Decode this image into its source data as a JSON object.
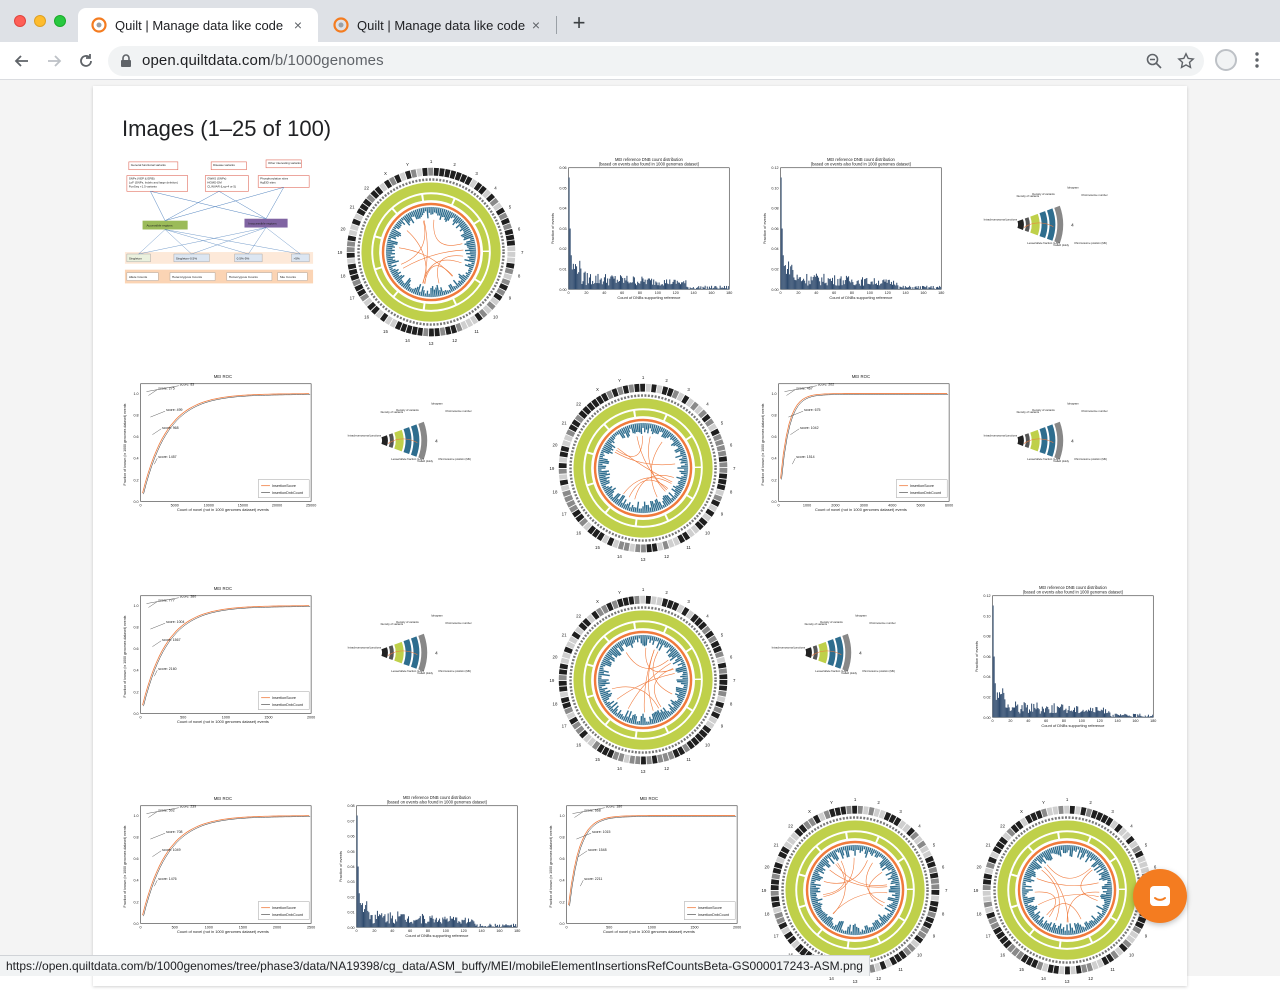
{
  "browser": {
    "tabs": [
      {
        "title": "Quilt | Manage data like code",
        "active": true
      },
      {
        "title": "Quilt | Manage data like code",
        "active": false
      }
    ],
    "new_tab_symbol": "+",
    "close_symbol": "×",
    "url_host": "open.quiltdata.com",
    "url_path": "/b/1000genomes",
    "icons": [
      "back-icon",
      "forward-icon",
      "reload-icon",
      "lock-icon",
      "zoom-icon",
      "star-icon",
      "profile-icon",
      "menu-icon"
    ]
  },
  "page": {
    "heading": "Images (1–25 of 100)",
    "status_url": "https://open.quiltdata.com/b/1000genomes/tree/phase3/data/NA19398/cg_data/ASM_buffy/MEI/mobileElementInsertionsRefCountsBeta-GS000017243-ASM.png",
    "thumbnails": [
      {
        "kind": "diagram"
      },
      {
        "kind": "circos"
      },
      {
        "kind": "histogram",
        "title": "MEI reference DNB count distribution",
        "subtitle": "(based on events also found in 1000 genomes dataset)",
        "ylabel": "Fraction of events",
        "xlabel": "Count of DNBs supporting reference",
        "yticks": [
          "0.00",
          "0.01",
          "0.02",
          "0.03",
          "0.04",
          "0.05",
          "0.06"
        ],
        "xticks": [
          "0",
          "20",
          "40",
          "60",
          "80",
          "100",
          "120",
          "140",
          "160",
          "180"
        ]
      },
      {
        "kind": "histogram",
        "title": "MEI reference DNB count distribution",
        "subtitle": "(based on events also found in 1000 genomes dataset)",
        "ylabel": "Fraction of events",
        "xlabel": "Count of DNBs supporting reference",
        "yticks": [
          "0.00",
          "0.02",
          "0.04",
          "0.06",
          "0.08",
          "0.10",
          "0.12"
        ],
        "xticks": [
          "0",
          "20",
          "40",
          "60",
          "80",
          "100",
          "120",
          "140",
          "160",
          "180"
        ]
      },
      {
        "kind": "legend"
      },
      {
        "kind": "roc",
        "title": "MEI ROC",
        "ylabel": "Fraction of known (in 1000 genomes dataset) events",
        "xlabel": "Count of novel (not in 1000 genomes dataset) events",
        "xticks": [
          "0",
          "5000",
          "10000",
          "15000",
          "20000",
          "25000"
        ],
        "scores": [
          "score: 83",
          "score: 275",
          "score: 499",
          "score: 968",
          "score: 1457"
        ],
        "legend": [
          "InsertionScore",
          "InsertionDnbCount"
        ]
      },
      {
        "kind": "legend"
      },
      {
        "kind": "circos"
      },
      {
        "kind": "roc",
        "title": "MEI ROC",
        "ylabel": "Fraction of known (in 1000 genomes dataset) events",
        "xlabel": "Count of novel (not in 1000 genomes dataset) events",
        "xticks": [
          "0",
          "1000",
          "2000",
          "3000",
          "4000",
          "5000",
          "6000"
        ],
        "scores": [
          "score: 202",
          "score: 467",
          "score: 675",
          "score: 1042",
          "score: 1514"
        ],
        "legend": [
          "InsertionScore",
          "InsertionDnbCount"
        ]
      },
      {
        "kind": "legend"
      },
      {
        "kind": "roc",
        "title": "MEI ROC",
        "ylabel": "Fraction of known (in 1000 genomes dataset) events",
        "xlabel": "Count of novel (not in 1000 genomes dataset) events",
        "xticks": [
          "0",
          "500",
          "1000",
          "1500",
          "2000"
        ],
        "scores": [
          "score: 380",
          "score: 777",
          "score: 1004",
          "score: 1567",
          "score: 2160"
        ],
        "legend": [
          "InsertionScore",
          "InsertionDnbCount"
        ]
      },
      {
        "kind": "legend"
      },
      {
        "kind": "circos"
      },
      {
        "kind": "legend"
      },
      {
        "kind": "histogram",
        "title": "MEI reference DNB count distribution",
        "subtitle": "(based on events also found in 1000 genomes dataset)",
        "ylabel": "Fraction of events",
        "xlabel": "Count of DNBs supporting reference",
        "yticks": [
          "0.00",
          "0.02",
          "0.04",
          "0.06",
          "0.08",
          "0.10",
          "0.12"
        ],
        "xticks": [
          "0",
          "20",
          "40",
          "60",
          "80",
          "100",
          "120",
          "140",
          "160",
          "180"
        ]
      },
      {
        "kind": "roc",
        "title": "MEI ROC",
        "ylabel": "Fraction of known (in 1000 genomes dataset) events",
        "xlabel": "Count of novel (not in 1000 genomes dataset) events",
        "xticks": [
          "0",
          "500",
          "1000",
          "1500",
          "2000",
          "2500"
        ],
        "scores": [
          "score: 239",
          "score: 502",
          "score: 708",
          "score: 1049",
          "score: 1476"
        ],
        "legend": [
          "InsertionScore",
          "InsertionDnbCount"
        ]
      },
      {
        "kind": "histogram",
        "title": "MEI reference DNB count distribution",
        "subtitle": "(based on events also found in 1000 genomes dataset)",
        "ylabel": "Fraction of events",
        "xlabel": "Count of DNBs supporting reference",
        "yticks": [
          "0.00",
          "0.01",
          "0.02",
          "0.03",
          "0.04",
          "0.05",
          "0.06",
          "0.07",
          "0.08"
        ],
        "xticks": [
          "0",
          "20",
          "40",
          "60",
          "80",
          "100",
          "120",
          "140",
          "160",
          "180"
        ]
      },
      {
        "kind": "roc",
        "title": "MEI ROC",
        "ylabel": "Fraction of known (in 1000 genomes dataset) events",
        "xlabel": "Count of novel (not in 1000 genomes dataset) events",
        "xticks": [
          "0",
          "500",
          "1000",
          "1500",
          "2000"
        ],
        "scores": [
          "score: 180",
          "score: 668",
          "score: 1015",
          "score: 1548",
          "score: 2211"
        ],
        "legend": [
          "InsertionScore",
          "InsertionDnbCount"
        ]
      },
      {
        "kind": "circos"
      },
      {
        "kind": "circos"
      }
    ],
    "diagram_labels": {
      "top": [
        "General functional variants",
        "Disease variants",
        "Other interesting variants"
      ],
      "lists": [
        "SNPs (VEP & ERB)\nLoF (SNPs, Indels and large deletion)\nFunSeq +1.5 variants",
        "GWAS (SNPs)\nHGMD-DM\nCLINVAR (Lrg>4 or 5)",
        "Phosphorylation sites\nHgEID sites"
      ],
      "mid": [
        "Accessible regions",
        "Inaccessible regions"
      ],
      "freq": [
        "Singleton",
        "Singleton-0.5%",
        "0.5%-5%",
        ">5%"
      ],
      "counts": [
        "Allele Counts",
        "Heterozygous Counts",
        "Homozygous Counts",
        "Site Counts"
      ]
    },
    "legend_labels": [
      "Density of variants",
      "Density of variants",
      "Ideogram",
      "Chromosome number",
      "Intrachromosomal junctions",
      "Lesser/allele fraction (LAF)",
      "Called ploidy",
      "Chromosome position (Mb)"
    ],
    "circos_numbers": [
      "1",
      "2",
      "3",
      "4",
      "5",
      "6",
      "7",
      "8",
      "9",
      "10",
      "11",
      "12",
      "13",
      "14",
      "15",
      "16",
      "17",
      "18",
      "19",
      "20",
      "21",
      "22",
      "X",
      "Y"
    ],
    "colors": {
      "olive": "#bfd04a",
      "blue": "#2e6d8e",
      "orange": "#f07a3c",
      "dark": "#2b2b2b",
      "bar": "#2f4b6e",
      "chat": "#f47c20"
    }
  }
}
